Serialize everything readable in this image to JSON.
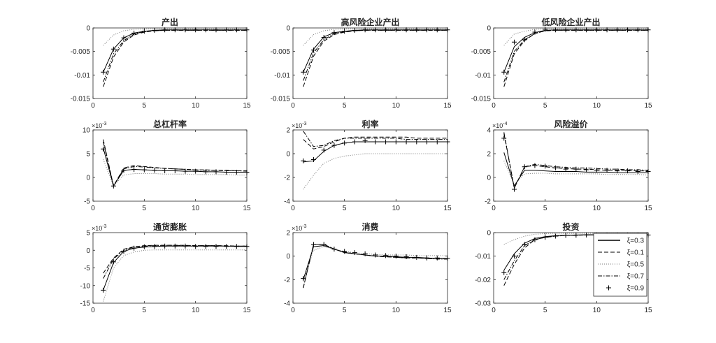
{
  "chart_data": {
    "type": "line",
    "layout": "3x3 subplots",
    "x": [
      1,
      2,
      3,
      4,
      5,
      6,
      7,
      8,
      9,
      10,
      11,
      12,
      13,
      14,
      15
    ],
    "xlim": [
      0,
      15
    ],
    "xticks": [
      0,
      5,
      10,
      15
    ],
    "legend": {
      "placement": "bottom-right of last panel",
      "entries": [
        {
          "label": "ξ=0.3",
          "style": "solid"
        },
        {
          "label": "ξ=0.1",
          "style": "dashed"
        },
        {
          "label": "ξ=0.5",
          "style": "dotted"
        },
        {
          "label": "ξ=0.7",
          "style": "dashdot"
        },
        {
          "label": "ξ=0.9",
          "style": "plus-marker"
        }
      ]
    },
    "panels": [
      {
        "title": "产出",
        "ylim": [
          -0.015,
          0
        ],
        "yticks": [
          "0",
          "-0.005",
          "-0.01",
          "-0.015"
        ],
        "yvals": [
          0,
          -0.005,
          -0.01,
          -0.015
        ],
        "exponent": "",
        "series": [
          [
            -0.0094,
            -0.0045,
            -0.0021,
            -0.0011,
            -0.0007,
            -0.0005,
            -0.0004,
            -0.0004,
            -0.0004,
            -0.0004,
            -0.0004,
            -0.0004,
            -0.0004,
            -0.0004,
            -0.0004
          ],
          [
            -0.0125,
            -0.0062,
            -0.003,
            -0.0015,
            -0.0009,
            -0.0006,
            -0.0005,
            -0.0005,
            -0.0005,
            -0.0005,
            -0.0005,
            -0.0005,
            -0.0005,
            -0.0005,
            -0.0005
          ],
          [
            -0.0037,
            -0.0015,
            -0.0006,
            -0.0003,
            -0.0002,
            -0.0002,
            -0.0002,
            -0.0002,
            -0.0002,
            -0.0002,
            -0.0002,
            -0.0002,
            -0.0002,
            -0.0002,
            -0.0002
          ],
          [
            -0.0115,
            -0.0055,
            -0.0027,
            -0.0013,
            -0.0008,
            -0.0006,
            -0.0005,
            -0.0005,
            -0.0005,
            -0.0005,
            -0.0005,
            -0.0005,
            -0.0005,
            -0.0005,
            -0.0005
          ],
          [
            -0.0094,
            -0.0045,
            -0.0021,
            -0.0011,
            -0.0007,
            -0.0005,
            -0.0004,
            -0.0004,
            -0.0004,
            -0.0004,
            -0.0004,
            -0.0004,
            -0.0004,
            -0.0004,
            -0.0004
          ]
        ]
      },
      {
        "title": "高风险企业产出",
        "ylim": [
          -0.015,
          0
        ],
        "yticks": [
          "0",
          "-0.005",
          "-0.01",
          "-0.015"
        ],
        "yvals": [
          0,
          -0.005,
          -0.01,
          -0.015
        ],
        "exponent": "",
        "series": [
          [
            -0.0094,
            -0.0045,
            -0.0019,
            -0.001,
            -0.0007,
            -0.0005,
            -0.0004,
            -0.0004,
            -0.0004,
            -0.0004,
            -0.0004,
            -0.0004,
            -0.0004,
            -0.0004,
            -0.0004
          ],
          [
            -0.0125,
            -0.006,
            -0.0028,
            -0.0014,
            -0.0009,
            -0.0006,
            -0.0005,
            -0.0005,
            -0.0005,
            -0.0005,
            -0.0005,
            -0.0005,
            -0.0005,
            -0.0005,
            -0.0005
          ],
          [
            -0.0037,
            -0.0014,
            -0.0006,
            -0.0003,
            -0.0002,
            -0.0002,
            -0.0002,
            -0.0002,
            -0.0002,
            -0.0002,
            -0.0002,
            -0.0002,
            -0.0002,
            -0.0002,
            -0.0002
          ],
          [
            -0.0112,
            -0.0053,
            -0.0025,
            -0.0012,
            -0.0008,
            -0.0006,
            -0.0005,
            -0.0005,
            -0.0005,
            -0.0005,
            -0.0005,
            -0.0005,
            -0.0005,
            -0.0005,
            -0.0005
          ],
          [
            -0.0094,
            -0.0047,
            -0.002,
            -0.001,
            -0.0007,
            -0.0005,
            -0.0004,
            -0.0004,
            -0.0004,
            -0.0004,
            -0.0004,
            -0.0004,
            -0.0004,
            -0.0004,
            -0.0004
          ]
        ]
      },
      {
        "title": "低风险企业产出",
        "ylim": [
          -0.015,
          0
        ],
        "yticks": [
          "0",
          "-0.005",
          "-0.01",
          "-0.015"
        ],
        "yvals": [
          0,
          -0.005,
          -0.01,
          -0.015
        ],
        "exponent": "",
        "series": [
          [
            -0.0094,
            -0.004,
            -0.002,
            -0.001,
            -0.0005,
            -0.0004,
            -0.0004,
            -0.0004,
            -0.0004,
            -0.0004,
            -0.0004,
            -0.0004,
            -0.0004,
            -0.0004,
            -0.0004
          ],
          [
            -0.0125,
            -0.0055,
            -0.0027,
            -0.0012,
            -0.0006,
            -0.0005,
            -0.0005,
            -0.0005,
            -0.0005,
            -0.0005,
            -0.0005,
            -0.0005,
            -0.0005,
            -0.0005,
            -0.0005
          ],
          [
            -0.0037,
            -0.0013,
            -0.0007,
            -0.0003,
            -0.0002,
            -0.0002,
            -0.0002,
            -0.0002,
            -0.0002,
            -0.0002,
            -0.0002,
            -0.0002,
            -0.0002,
            -0.0002,
            -0.0002
          ],
          [
            -0.0115,
            -0.005,
            -0.0025,
            -0.0012,
            -0.0006,
            -0.0005,
            -0.0005,
            -0.0005,
            -0.0005,
            -0.0005,
            -0.0005,
            -0.0005,
            -0.0005,
            -0.0005,
            -0.0005
          ],
          [
            -0.0094,
            -0.003,
            -0.0025,
            -0.0009,
            -0.0003,
            -0.0004,
            -0.0004,
            -0.0004,
            -0.0004,
            -0.0004,
            -0.0004,
            -0.0004,
            -0.0004,
            -0.0004,
            -0.0004
          ]
        ]
      },
      {
        "title": "总杠杆率",
        "ylim": [
          -5,
          10
        ],
        "yticks": [
          "-5",
          "0",
          "5",
          "10"
        ],
        "yvals": [
          -5,
          0,
          5,
          10
        ],
        "exponent": "-3",
        "series": [
          [
            6.2,
            -1.8,
            1.5,
            1.7,
            1.6,
            1.5,
            1.4,
            1.4,
            1.3,
            1.3,
            1.2,
            1.2,
            1.1,
            1.1,
            1.1
          ],
          [
            8,
            -1.8,
            2,
            2.5,
            2.3,
            2.1,
            1.9,
            1.8,
            1.7,
            1.6,
            1.6,
            1.5,
            1.5,
            1.4,
            1.4
          ],
          [
            3.8,
            -1.8,
            0.5,
            0.8,
            0.8,
            0.8,
            0.7,
            0.7,
            0.7,
            0.6,
            0.6,
            0.6,
            0.6,
            0.5,
            0.5
          ],
          [
            7.5,
            -1.8,
            1.8,
            2.3,
            2.2,
            2.0,
            1.9,
            1.8,
            1.7,
            1.6,
            1.5,
            1.5,
            1.4,
            1.4,
            1.3
          ],
          [
            6,
            -1.8,
            1.5,
            1.7,
            1.6,
            1.5,
            1.4,
            1.4,
            1.3,
            1.3,
            1.2,
            1.2,
            1.1,
            1.1,
            1.1
          ]
        ]
      },
      {
        "title": "利率",
        "ylim": [
          -4,
          2
        ],
        "yticks": [
          "-4",
          "-2",
          "0",
          "2"
        ],
        "yvals": [
          -4,
          -2,
          0,
          2
        ],
        "exponent": "-3",
        "series": [
          [
            -0.7,
            -0.6,
            0.2,
            0.7,
            0.9,
            1.0,
            1.0,
            1.0,
            1.0,
            1.0,
            1.0,
            1.0,
            1.0,
            1.0,
            1.0
          ],
          [
            1.2,
            0.4,
            0.6,
            1.0,
            1.3,
            1.4,
            1.4,
            1.4,
            1.4,
            1.4,
            1.4,
            1.3,
            1.3,
            1.3,
            1.3
          ],
          [
            -3,
            -1.8,
            -0.8,
            -0.4,
            -0.2,
            -0.1,
            0,
            0,
            0,
            0,
            0,
            0,
            0,
            0,
            0
          ],
          [
            1.9,
            0.6,
            0.7,
            1.1,
            1.3,
            1.3,
            1.3,
            1.3,
            1.3,
            1.3,
            1.2,
            1.2,
            1.2,
            1.2,
            1.2
          ],
          [
            -0.6,
            -0.5,
            0.3,
            0.7,
            0.9,
            1.0,
            1.1,
            1.0,
            1.0,
            1.0,
            1.0,
            1.0,
            1.0,
            1.0,
            1.0
          ]
        ]
      },
      {
        "title": "风险溢价",
        "ylim": [
          -2,
          4
        ],
        "yticks": [
          "-2",
          "0",
          "2",
          "4"
        ],
        "yvals": [
          -2,
          0,
          2,
          4
        ],
        "exponent": "-4",
        "series": [
          [
            2.1,
            -0.7,
            0.6,
            0.6,
            0.55,
            0.5,
            0.5,
            0.5,
            0.45,
            0.45,
            0.45,
            0.4,
            0.4,
            0.4,
            0.4
          ],
          [
            3.7,
            -0.9,
            0.9,
            1.0,
            0.9,
            0.8,
            0.75,
            0.7,
            0.7,
            0.65,
            0.6,
            0.6,
            0.6,
            0.55,
            0.55
          ],
          [
            1.4,
            -0.6,
            0.3,
            0.35,
            0.35,
            0.3,
            0.3,
            0.3,
            0.3,
            0.3,
            0.25,
            0.25,
            0.25,
            0.25,
            0.2
          ],
          [
            3.8,
            -0.9,
            0.9,
            1.1,
            1.0,
            0.9,
            0.85,
            0.8,
            0.8,
            0.75,
            0.7,
            0.7,
            0.65,
            0.65,
            0.6
          ],
          [
            3.3,
            -1.0,
            0.9,
            1.0,
            0.95,
            0.8,
            0.7,
            0.7,
            0.65,
            0.6,
            0.6,
            0.55,
            0.55,
            0.5,
            0.5
          ]
        ]
      },
      {
        "title": "通货膨胀",
        "ylim": [
          -15,
          5
        ],
        "yticks": [
          "-15",
          "-10",
          "-5",
          "0",
          "5"
        ],
        "yvals": [
          -15,
          -10,
          -5,
          0,
          5
        ],
        "exponent": "-3",
        "series": [
          [
            -11.3,
            -3.5,
            -0.3,
            0.6,
            0.9,
            1.1,
            1.2,
            1.2,
            1.2,
            1.2,
            1.2,
            1.2,
            1.2,
            1.1,
            1.1
          ],
          [
            -6.5,
            -2.2,
            0.3,
            1.0,
            1.3,
            1.4,
            1.4,
            1.4,
            1.4,
            1.3,
            1.3,
            1.3,
            1.3,
            1.2,
            1.2
          ],
          [
            -14.5,
            -5,
            -1.5,
            -0.5,
            0,
            0.1,
            0.1,
            0.1,
            0.1,
            0.1,
            0.1,
            0.1,
            0.1,
            0.1,
            0.1
          ],
          [
            -8,
            -2.5,
            0,
            0.9,
            1.2,
            1.3,
            1.4,
            1.4,
            1.3,
            1.3,
            1.3,
            1.3,
            1.2,
            1.2,
            1.2
          ],
          [
            -11.3,
            -3.3,
            -0.3,
            0.6,
            1.0,
            1.1,
            1.2,
            1.2,
            1.2,
            1.1,
            1.1,
            1.1,
            1.1,
            1.1,
            1.1
          ]
        ]
      },
      {
        "title": "消费",
        "ylim": [
          -4,
          2
        ],
        "yticks": [
          "-4",
          "-2",
          "0",
          "2"
        ],
        "yvals": [
          -4,
          -2,
          0,
          2
        ],
        "exponent": "-3",
        "series": [
          [
            -2,
            0.8,
            0.9,
            0.6,
            0.3,
            0.2,
            0.1,
            0,
            0,
            -0.05,
            -0.1,
            -0.1,
            -0.15,
            -0.2,
            -0.2
          ],
          [
            -2.7,
            1.0,
            1.0,
            0.6,
            0.35,
            0.2,
            0.1,
            0,
            -0.05,
            -0.1,
            -0.15,
            -0.15,
            -0.2,
            -0.2,
            -0.25
          ],
          [
            -2.2,
            0.5,
            0.8,
            0.6,
            0.4,
            0.3,
            0.2,
            0.15,
            0.1,
            0.1,
            0.1,
            0.05,
            0.05,
            0.05,
            0.05
          ],
          [
            -2.7,
            1.0,
            1.0,
            0.6,
            0.3,
            0.2,
            0.1,
            0,
            -0.05,
            -0.1,
            -0.15,
            -0.15,
            -0.2,
            -0.25,
            -0.25
          ],
          [
            -1.9,
            1.0,
            1.0,
            0.6,
            0.4,
            0.3,
            0.2,
            0.1,
            0.05,
            0,
            -0.05,
            -0.1,
            -0.15,
            -0.15,
            -0.2
          ]
        ]
      },
      {
        "title": "投资",
        "ylim": [
          -0.03,
          0
        ],
        "yticks": [
          "-0.03",
          "-0.02",
          "-0.01",
          "0"
        ],
        "yvals": [
          -0.03,
          -0.02,
          -0.01,
          0
        ],
        "exponent": "",
        "series": [
          [
            -0.016,
            -0.009,
            -0.0045,
            -0.0025,
            -0.0017,
            -0.0013,
            -0.0011,
            -0.001,
            -0.0009,
            -0.0009,
            -0.0009,
            -0.0009,
            -0.0009,
            -0.0009,
            -0.0009
          ],
          [
            -0.0225,
            -0.0135,
            -0.0065,
            -0.003,
            -0.002,
            -0.0015,
            -0.0012,
            -0.0011,
            -0.001,
            -0.001,
            -0.001,
            -0.001,
            -0.001,
            -0.001,
            -0.001
          ],
          [
            -0.005,
            -0.003,
            -0.0015,
            -0.0007,
            -0.0004,
            -0.0003,
            -0.0003,
            -0.0003,
            -0.0003,
            -0.0003,
            -0.0003,
            -0.0003,
            -0.0003,
            -0.0003,
            -0.0003
          ],
          [
            -0.02,
            -0.012,
            -0.0055,
            -0.003,
            -0.002,
            -0.0015,
            -0.0012,
            -0.0011,
            -0.001,
            -0.001,
            -0.001,
            -0.001,
            -0.001,
            -0.001,
            -0.001
          ],
          [
            -0.017,
            -0.01,
            -0.005,
            -0.003,
            -0.002,
            -0.0015,
            -0.0012,
            -0.0011,
            -0.001,
            -0.001,
            -0.001,
            -0.001,
            -0.001,
            -0.001,
            -0.001
          ]
        ]
      }
    ]
  }
}
